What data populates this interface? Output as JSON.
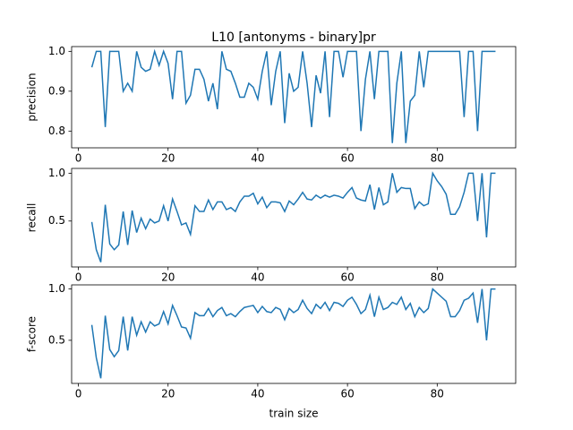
{
  "chart_data": [
    {
      "type": "line",
      "title": "L10 [antonyms - binary]pr",
      "ylabel": "precision",
      "color": "#1f77b4",
      "x": [
        3,
        4,
        5,
        6,
        7,
        8,
        9,
        10,
        11,
        12,
        13,
        14,
        15,
        16,
        17,
        18,
        19,
        20,
        21,
        22,
        23,
        24,
        25,
        26,
        27,
        28,
        29,
        30,
        31,
        32,
        33,
        34,
        35,
        36,
        37,
        38,
        39,
        40,
        41,
        42,
        43,
        44,
        45,
        46,
        47,
        48,
        49,
        50,
        51,
        52,
        53,
        54,
        55,
        56,
        57,
        58,
        59,
        60,
        61,
        62,
        63,
        64,
        65,
        66,
        67,
        68,
        69,
        70,
        71,
        72,
        73,
        74,
        75,
        76,
        77,
        78,
        79,
        80,
        81,
        82,
        83,
        84,
        85,
        86,
        87,
        88,
        89,
        90,
        91,
        92,
        93
      ],
      "values": [
        0.96,
        1.0,
        1.0,
        0.81,
        1.0,
        1.0,
        1.0,
        0.9,
        0.92,
        0.9,
        1.0,
        0.96,
        0.95,
        0.955,
        1.0,
        0.965,
        1.0,
        0.97,
        0.88,
        1.0,
        1.0,
        0.87,
        0.89,
        0.955,
        0.955,
        0.93,
        0.875,
        0.92,
        0.855,
        1.0,
        0.955,
        0.95,
        0.92,
        0.885,
        0.885,
        0.92,
        0.91,
        0.88,
        0.95,
        1.0,
        0.865,
        0.95,
        1.0,
        0.82,
        0.945,
        0.9,
        0.91,
        1.0,
        0.92,
        0.81,
        0.94,
        0.895,
        1.0,
        0.835,
        1.0,
        1.0,
        0.935,
        1.0,
        1.0,
        1.0,
        0.8,
        0.93,
        1.0,
        0.88,
        1.0,
        1.0,
        1.0,
        0.77,
        0.92,
        1.0,
        0.77,
        0.875,
        0.89,
        1.0,
        0.91,
        1.0,
        1.0,
        1.0,
        1.0,
        1.0,
        1.0,
        1.0,
        1.0,
        0.835,
        1.0,
        1.0,
        0.8,
        1.0,
        1.0,
        1.0,
        1.0
      ],
      "xlim": [
        -1.5,
        97.5
      ],
      "xticks": [
        0,
        20,
        40,
        60,
        80
      ],
      "ylim": [
        0.758,
        1.012
      ],
      "yticks": [
        {
          "value": 0.8,
          "label": "0.8"
        },
        {
          "value": 0.9,
          "label": "0.9"
        },
        {
          "value": 1.0,
          "label": "1.0"
        }
      ]
    },
    {
      "type": "line",
      "ylabel": "recall",
      "color": "#1f77b4",
      "x": [
        3,
        4,
        5,
        6,
        7,
        8,
        9,
        10,
        11,
        12,
        13,
        14,
        15,
        16,
        17,
        18,
        19,
        20,
        21,
        22,
        23,
        24,
        25,
        26,
        27,
        28,
        29,
        30,
        31,
        32,
        33,
        34,
        35,
        36,
        37,
        38,
        39,
        40,
        41,
        42,
        43,
        44,
        45,
        46,
        47,
        48,
        49,
        50,
        51,
        52,
        53,
        54,
        55,
        56,
        57,
        58,
        59,
        60,
        61,
        62,
        63,
        64,
        65,
        66,
        67,
        68,
        69,
        70,
        71,
        72,
        73,
        74,
        75,
        76,
        77,
        78,
        79,
        80,
        81,
        82,
        83,
        84,
        85,
        86,
        87,
        88,
        89,
        90,
        91,
        92,
        93
      ],
      "values": [
        0.49,
        0.2,
        0.07,
        0.67,
        0.26,
        0.2,
        0.25,
        0.6,
        0.25,
        0.61,
        0.38,
        0.53,
        0.42,
        0.52,
        0.48,
        0.5,
        0.66,
        0.5,
        0.73,
        0.6,
        0.46,
        0.48,
        0.36,
        0.66,
        0.6,
        0.6,
        0.72,
        0.62,
        0.7,
        0.7,
        0.62,
        0.64,
        0.6,
        0.7,
        0.76,
        0.76,
        0.79,
        0.68,
        0.75,
        0.64,
        0.7,
        0.7,
        0.69,
        0.6,
        0.71,
        0.67,
        0.73,
        0.8,
        0.73,
        0.72,
        0.77,
        0.74,
        0.77,
        0.75,
        0.77,
        0.76,
        0.74,
        0.8,
        0.85,
        0.74,
        0.72,
        0.71,
        0.88,
        0.62,
        0.85,
        0.67,
        0.7,
        1.0,
        0.8,
        0.85,
        0.84,
        0.84,
        0.63,
        0.7,
        0.66,
        0.68,
        1.0,
        0.92,
        0.86,
        0.78,
        0.57,
        0.57,
        0.65,
        0.8,
        1.0,
        1.0,
        0.5,
        1.0,
        0.33,
        1.0,
        1.0
      ],
      "xlim": [
        -1.5,
        97.5
      ],
      "xticks": [
        0,
        20,
        40,
        60,
        80
      ],
      "ylim": [
        0.02,
        1.05
      ],
      "yticks": [
        {
          "value": 0.5,
          "label": "0.5"
        },
        {
          "value": 1.0,
          "label": "1.0"
        }
      ]
    },
    {
      "type": "line",
      "ylabel": "f-score",
      "xlabel": "train size",
      "color": "#1f77b4",
      "x": [
        3,
        4,
        5,
        6,
        7,
        8,
        9,
        10,
        11,
        12,
        13,
        14,
        15,
        16,
        17,
        18,
        19,
        20,
        21,
        22,
        23,
        24,
        25,
        26,
        27,
        28,
        29,
        30,
        31,
        32,
        33,
        34,
        35,
        36,
        37,
        38,
        39,
        40,
        41,
        42,
        43,
        44,
        45,
        46,
        47,
        48,
        49,
        50,
        51,
        52,
        53,
        54,
        55,
        56,
        57,
        58,
        59,
        60,
        61,
        62,
        63,
        64,
        65,
        66,
        67,
        68,
        69,
        70,
        71,
        72,
        73,
        74,
        75,
        76,
        77,
        78,
        79,
        80,
        81,
        82,
        83,
        84,
        85,
        86,
        87,
        88,
        89,
        90,
        91,
        92,
        93
      ],
      "values": [
        0.65,
        0.33,
        0.13,
        0.74,
        0.41,
        0.34,
        0.4,
        0.73,
        0.4,
        0.73,
        0.55,
        0.68,
        0.58,
        0.68,
        0.64,
        0.66,
        0.78,
        0.66,
        0.84,
        0.74,
        0.63,
        0.62,
        0.52,
        0.77,
        0.74,
        0.74,
        0.81,
        0.73,
        0.79,
        0.82,
        0.74,
        0.76,
        0.73,
        0.78,
        0.82,
        0.83,
        0.84,
        0.77,
        0.83,
        0.78,
        0.77,
        0.82,
        0.8,
        0.7,
        0.81,
        0.77,
        0.8,
        0.89,
        0.81,
        0.76,
        0.85,
        0.81,
        0.87,
        0.79,
        0.87,
        0.86,
        0.83,
        0.89,
        0.92,
        0.85,
        0.76,
        0.8,
        0.94,
        0.73,
        0.92,
        0.8,
        0.82,
        0.87,
        0.85,
        0.92,
        0.8,
        0.86,
        0.73,
        0.82,
        0.77,
        0.81,
        1.0,
        0.96,
        0.92,
        0.88,
        0.73,
        0.73,
        0.79,
        0.89,
        0.91,
        0.96,
        0.67,
        1.0,
        0.5,
        1.0,
        1.0
      ],
      "xlim": [
        -1.5,
        97.5
      ],
      "xticks": [
        0,
        20,
        40,
        60,
        80
      ],
      "ylim": [
        0.08,
        1.04
      ],
      "yticks": [
        {
          "value": 0.5,
          "label": "0.5"
        },
        {
          "value": 1.0,
          "label": "1.0"
        }
      ]
    }
  ]
}
